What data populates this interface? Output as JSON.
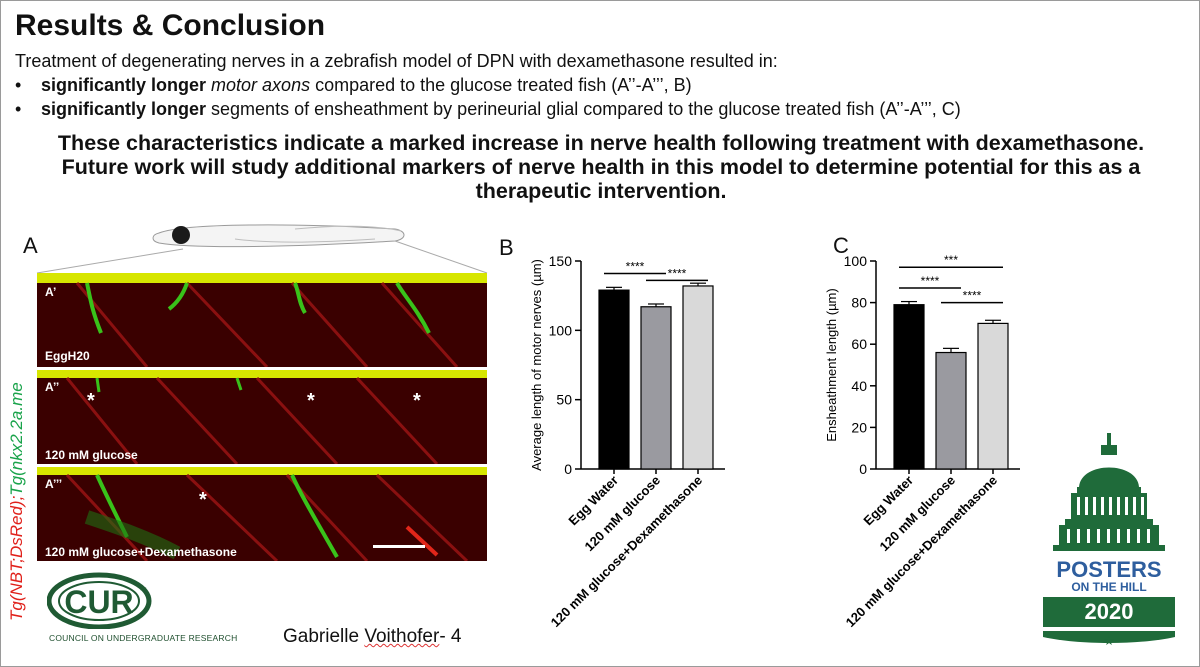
{
  "title": "Results & Conclusion",
  "intro": "Treatment of degenerating nerves in a zebrafish model of DPN with dexamethasone resulted in:",
  "bullets": [
    {
      "bold": "significantly longer",
      "italic": " motor axons",
      "rest": " compared to the glucose treated fish (A’’-A’’’, B)"
    },
    {
      "bold": "significantly longer",
      "italic": "",
      "rest": " segments of ensheathment by perineurial glial compared to the glucose treated fish (A’’-A’’’, C)"
    }
  ],
  "conclusion": [
    "These characteristics indicate a marked increase in nerve health following treatment with dexamethasone.",
    "Future work will study additional markers of nerve health in this model to determine potential for this as a",
    "therapeutic intervention."
  ],
  "panel_a": {
    "label": "A",
    "ylabel_red": "Tg(NBT;DsRed);",
    "ylabel_green": "Tg(nkx2.2a.me",
    "ylabel_red_color": "#e0201a",
    "ylabel_green_color": "#19a34a",
    "images": [
      {
        "tag": "A’",
        "caption": "EggH20",
        "stars": 0
      },
      {
        "tag": "A’’",
        "caption": "120 mM glucose",
        "stars": 3
      },
      {
        "tag": "A’’’",
        "caption": "120 mM glucose+Dexamethasone",
        "stars": 1
      }
    ],
    "star_symbol": "*"
  },
  "chart_data": [
    {
      "type": "bar",
      "label": "B",
      "categories": [
        "Egg Water",
        "120 mM glucose",
        "120 mM glucose+Dexamethasone"
      ],
      "values": [
        129,
        117,
        132
      ],
      "errors": [
        2,
        2,
        2
      ],
      "bar_colors": [
        "#000000",
        "#9a9aa0",
        "#d9d9d9"
      ],
      "ylabel": "Average length of motor nerves (µm)",
      "ylim": [
        0,
        150
      ],
      "yticks": [
        0,
        50,
        100,
        150
      ],
      "significance": [
        {
          "from": 0,
          "to": 1,
          "text": "****",
          "y": 141
        },
        {
          "from": 1,
          "to": 2,
          "text": "****",
          "y": 136
        }
      ]
    },
    {
      "type": "bar",
      "label": "C",
      "categories": [
        "Egg Water",
        "120 mM glucose",
        "120 mM glucose+Dexamethasone"
      ],
      "values": [
        79,
        56,
        70
      ],
      "errors": [
        1.5,
        2,
        1.5
      ],
      "bar_colors": [
        "#000000",
        "#9a9aa0",
        "#d9d9d9"
      ],
      "ylabel": "Ensheathment length (µm)",
      "ylim": [
        0,
        100
      ],
      "yticks": [
        0,
        20,
        40,
        60,
        80,
        100
      ],
      "significance": [
        {
          "from": 0,
          "to": 2,
          "text": "***",
          "y": 97
        },
        {
          "from": 0,
          "to": 1,
          "text": "****",
          "y": 87
        },
        {
          "from": 1,
          "to": 2,
          "text": "****",
          "y": 80
        }
      ]
    }
  ],
  "logos": {
    "cur": {
      "mark": "CUR",
      "tm": "™",
      "caption": "COUNCIL ON UNDERGRADUATE RESEARCH",
      "color": "#1f5a33"
    },
    "poh": {
      "line1": "POSTERS",
      "line2": "ON THE HILL",
      "year": "2020",
      "star": "★",
      "color": "#1f6b3a"
    }
  },
  "author": {
    "first": "Gabrielle ",
    "last": "Voithofer",
    "suffix": "- 4"
  }
}
